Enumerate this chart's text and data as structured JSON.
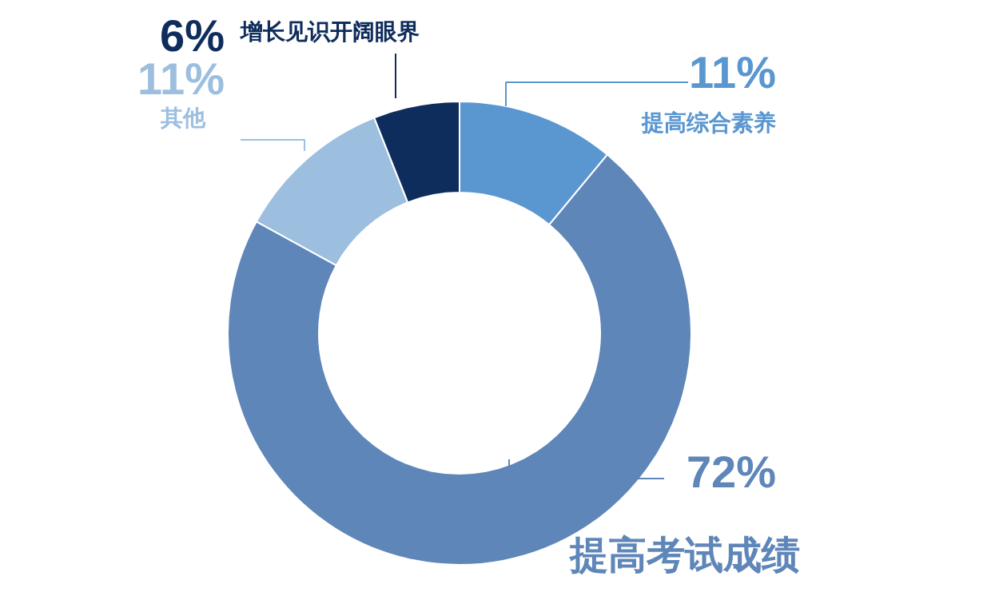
{
  "chart_data": {
    "type": "donut",
    "categories": [
      "提高综合素养",
      "提高考试成绩",
      "其他",
      "增长见识开阔眼界"
    ],
    "values": [
      11,
      72,
      11,
      6
    ],
    "value_labels": [
      "11%",
      "72%",
      "11%",
      "6%"
    ],
    "colors": [
      "#5a97d0",
      "#5f86b8",
      "#9dbfdf",
      "#0f2d5c"
    ]
  }
}
